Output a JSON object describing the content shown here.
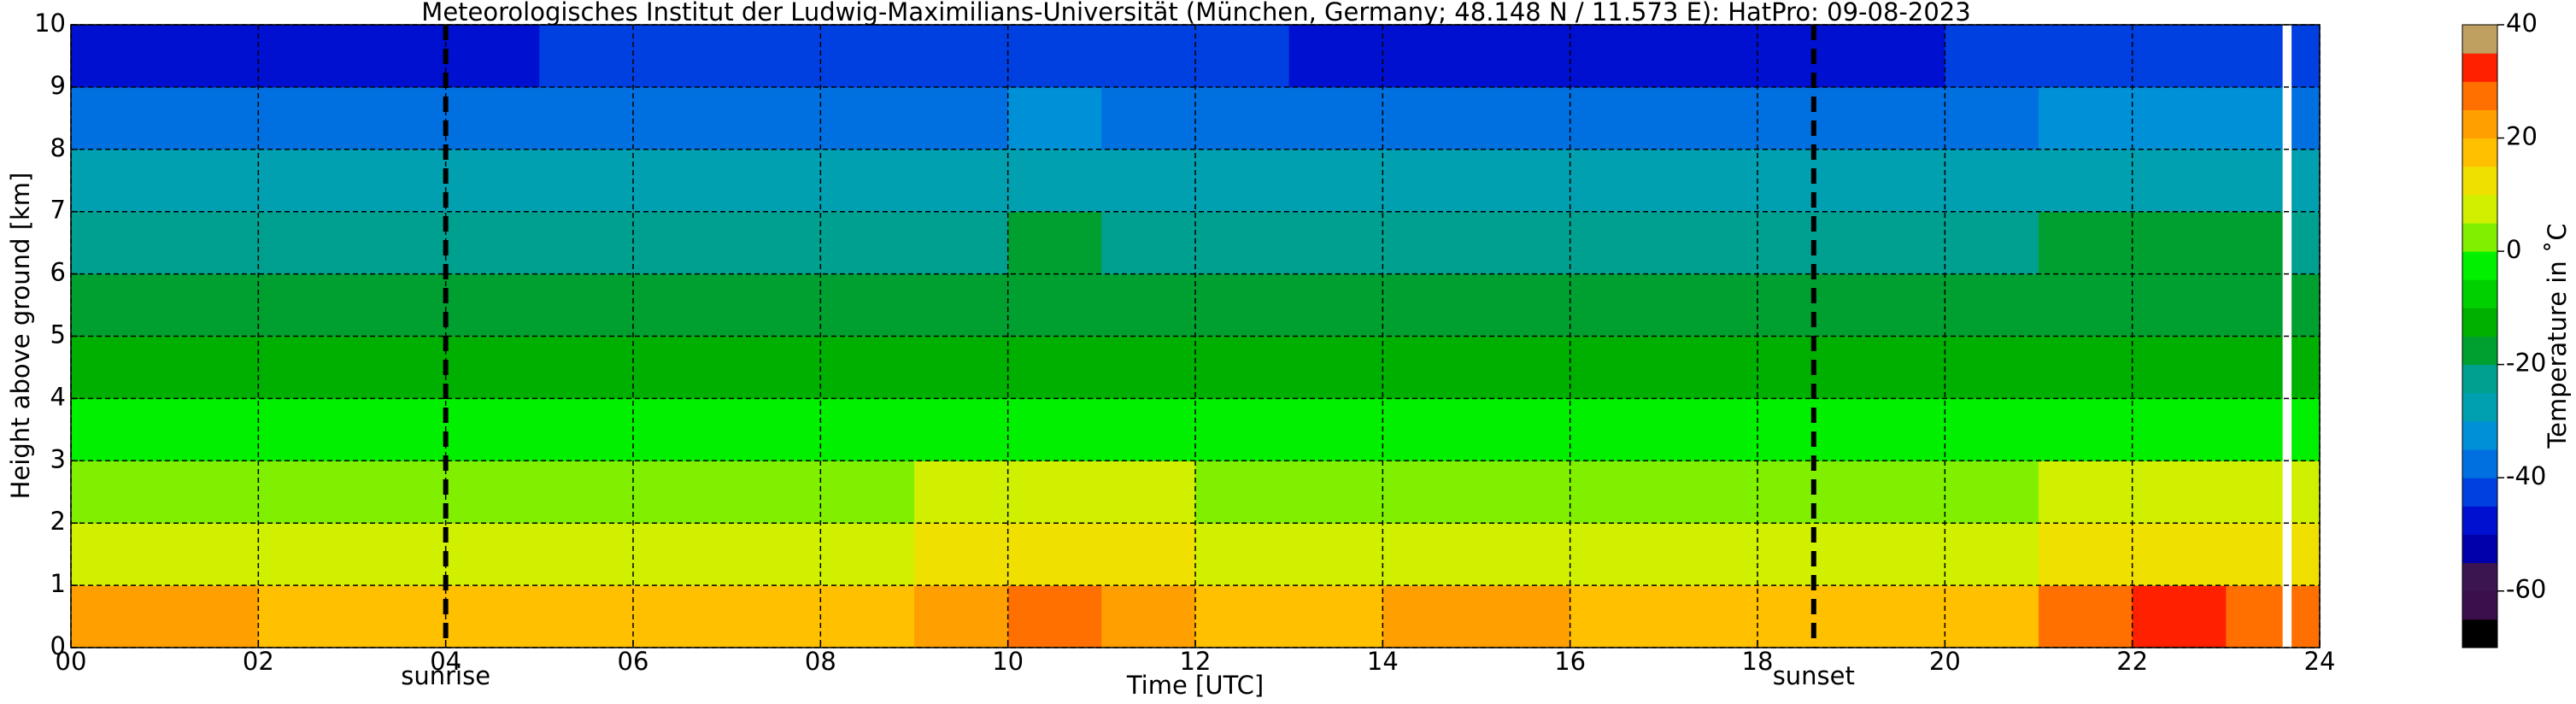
{
  "chart_data": {
    "type": "heatmap",
    "title": "Meteorologisches Institut der Ludwig-Maximilians-Universität (München, Germany; 48.148 N / 11.573 E):    HatPro: 09-08-2023",
    "x_label": "Time [UTC]",
    "y_label": "Height above ground [km]",
    "x": [
      0,
      1,
      2,
      3,
      4,
      5,
      6,
      7,
      8,
      9,
      10,
      11,
      12,
      13,
      14,
      15,
      16,
      17,
      18,
      19,
      20,
      21,
      22,
      23,
      23.6,
      23.7,
      24
    ],
    "y": [
      0,
      1,
      2,
      3,
      4,
      5,
      6,
      7,
      8,
      9,
      10
    ],
    "z": [
      [
        20,
        20,
        19,
        18,
        18,
        18,
        19,
        19,
        19,
        22,
        28,
        21,
        19,
        19,
        20,
        20,
        19,
        19,
        19,
        18,
        19,
        27,
        31,
        29,
        null,
        25
      ],
      [
        8,
        8,
        8,
        7,
        7,
        8,
        8,
        8,
        9,
        11,
        13,
        10,
        8,
        8,
        9,
        9,
        8,
        8,
        8,
        8,
        9,
        13,
        14,
        13,
        null,
        10
      ],
      [
        3,
        3,
        2,
        2,
        2,
        3,
        3,
        3,
        4,
        6,
        8,
        5,
        3,
        3,
        4,
        4,
        3,
        3,
        3,
        3,
        4,
        8,
        9,
        8,
        null,
        5
      ],
      [
        -5,
        -5,
        -5,
        -5,
        -5,
        -4,
        -4,
        -4,
        -4,
        -2,
        -1,
        -3,
        -4,
        -4,
        -4,
        -4,
        -4,
        -4,
        -4,
        -5,
        -4,
        -1,
        -1,
        -1,
        null,
        -3
      ],
      [
        -12,
        -12,
        -12,
        -12,
        -12,
        -12,
        -12,
        -12,
        -12,
        -12,
        -11,
        -12,
        -12,
        -12,
        -12,
        -12,
        -12,
        -12,
        -12,
        -12,
        -12,
        -11,
        -11,
        -11,
        null,
        -12
      ],
      [
        -16,
        -16,
        -16,
        -16,
        -16,
        -17,
        -17,
        -16,
        -16,
        -16,
        -16,
        -16,
        -16,
        -16,
        -17,
        -17,
        -16,
        -16,
        -16,
        -16,
        -16,
        -16,
        -16,
        -16,
        null,
        -16
      ],
      [
        -23,
        -23,
        -23,
        -23,
        -23,
        -22,
        -22,
        -22,
        -23,
        -21,
        -19,
        -21,
        -23,
        -23,
        -23,
        -23,
        -23,
        -23,
        -23,
        -23,
        -22,
        -19,
        -19,
        -19,
        null,
        -22
      ],
      [
        -30,
        -30,
        -30,
        -30,
        -30,
        -29,
        -29,
        -29,
        -29,
        -28,
        -27,
        -28,
        -29,
        -30,
        -30,
        -30,
        -30,
        -30,
        -30,
        -30,
        -29,
        -27,
        -27,
        -27,
        null,
        -29
      ],
      [
        -38,
        -38,
        -38,
        -38,
        -38,
        -37,
        -37,
        -37,
        -37,
        -36,
        -35,
        -36,
        -37,
        -38,
        -38,
        -38,
        -38,
        -38,
        -38,
        -38,
        -37,
        -35,
        -35,
        -35,
        null,
        -37
      ],
      [
        -46,
        -46,
        -46,
        -46,
        -46,
        -45,
        -45,
        -45,
        -45,
        -43,
        -42,
        -43,
        -45,
        -46,
        -46,
        -46,
        -46,
        -46,
        -46,
        -46,
        -45,
        -42,
        -42,
        -42,
        null,
        -45
      ]
    ],
    "xlim": [
      0,
      24
    ],
    "ylim": [
      0,
      10
    ],
    "xticks": [
      {
        "value": 0,
        "label": "00"
      },
      {
        "value": 2,
        "label": "02"
      },
      {
        "value": 4,
        "label": "04"
      },
      {
        "value": 6,
        "label": "06"
      },
      {
        "value": 8,
        "label": "08"
      },
      {
        "value": 10,
        "label": "10"
      },
      {
        "value": 12,
        "label": "12"
      },
      {
        "value": 14,
        "label": "14"
      },
      {
        "value": 16,
        "label": "16"
      },
      {
        "value": 18,
        "label": "18"
      },
      {
        "value": 20,
        "label": "20"
      },
      {
        "value": 22,
        "label": "22"
      },
      {
        "value": 24,
        "label": "24"
      }
    ],
    "yticks": [
      0,
      1,
      2,
      3,
      4,
      5,
      6,
      7,
      8,
      9,
      10
    ],
    "grid": true,
    "annotations": [
      {
        "label": "sunrise",
        "x": 4
      },
      {
        "label": "sunset",
        "x": 18.6
      }
    ],
    "colorbar": {
      "label": "Temperature in ˚C",
      "lim": [
        -70,
        40
      ],
      "ticks": [
        -60,
        -40,
        -20,
        0,
        20,
        40
      ],
      "levels": [
        -70,
        -65,
        -60,
        -55,
        -50,
        -45,
        -40,
        -35,
        -30,
        -25,
        -20,
        -15,
        -10,
        -5,
        0,
        5,
        10,
        15,
        20,
        25,
        30,
        35,
        40
      ],
      "colors": [
        "#000000",
        "#3a0f4a",
        "#3a1550",
        "#0000aa",
        "#0010d0",
        "#0040e0",
        "#0070e0",
        "#0090d8",
        "#00a0b0",
        "#00a090",
        "#00a030",
        "#00b000",
        "#00d000",
        "#00f000",
        "#80f000",
        "#d0f000",
        "#f0e000",
        "#ffc000",
        "#ffa000",
        "#ff7000",
        "#ff2000",
        "#c0a060"
      ]
    }
  }
}
